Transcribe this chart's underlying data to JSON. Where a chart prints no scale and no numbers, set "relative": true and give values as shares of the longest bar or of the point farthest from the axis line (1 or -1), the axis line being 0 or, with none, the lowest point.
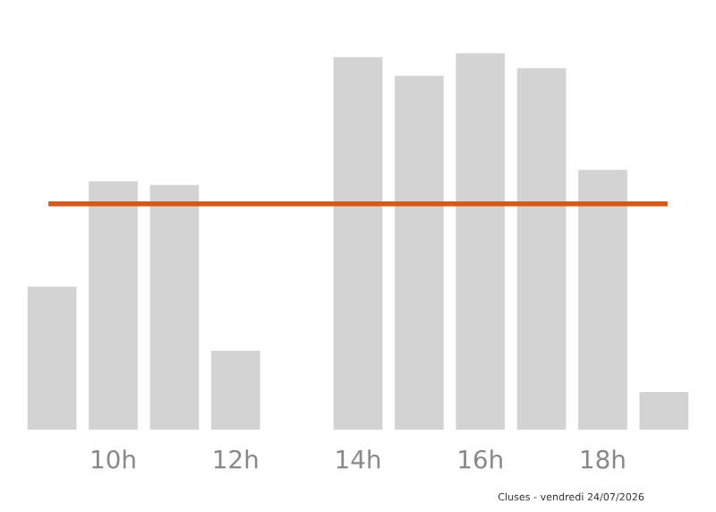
{
  "chart_data": {
    "type": "bar",
    "relative": true,
    "categories": [
      null,
      "10h",
      null,
      "12h",
      null,
      "14h",
      null,
      "16h",
      null,
      "18h",
      null
    ],
    "values": [
      0.38,
      0.66,
      0.65,
      0.21,
      0,
      0.99,
      0.94,
      1,
      0.96,
      0.69,
      0.1
    ],
    "color": "#d3d3d3",
    "ref_lines": [
      {
        "axis": "y",
        "value": 0.6,
        "color": "#d35a1a"
      }
    ],
    "annotations": [
      "Cluses - vendredi 24/07/2026"
    ],
    "grid": false,
    "legend": false
  }
}
